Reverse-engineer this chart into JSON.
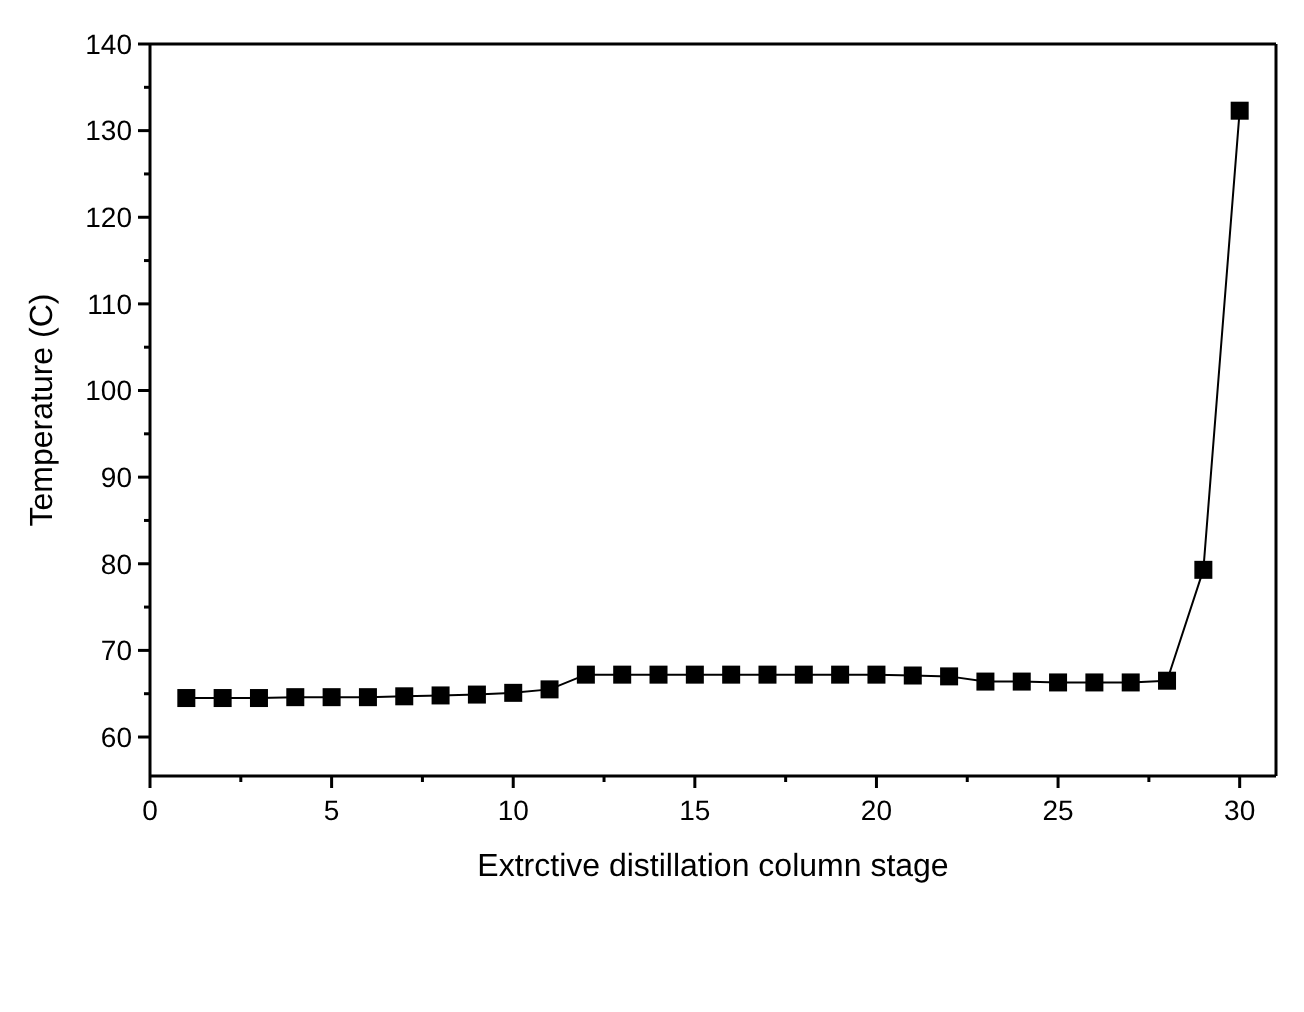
{
  "chart_data": {
    "type": "line",
    "xlabel": "Extrctive distillation column stage",
    "ylabel": "Temperature (C)",
    "x": [
      1,
      2,
      3,
      4,
      5,
      6,
      7,
      8,
      9,
      10,
      11,
      12,
      13,
      14,
      15,
      16,
      17,
      18,
      19,
      20,
      21,
      22,
      23,
      24,
      25,
      26,
      27,
      28,
      29,
      30
    ],
    "series": [
      {
        "color": "#000000",
        "values": [
          64.5,
          64.5,
          64.5,
          64.6,
          64.6,
          64.6,
          64.7,
          64.8,
          64.9,
          65.1,
          65.5,
          67.2,
          67.2,
          67.2,
          67.2,
          67.2,
          67.2,
          67.2,
          67.2,
          67.2,
          67.1,
          67.0,
          66.4,
          66.4,
          66.3,
          66.3,
          66.3,
          66.5,
          79.3,
          132.3
        ]
      }
    ],
    "xlim": [
      0,
      31
    ],
    "ylim": [
      55.5,
      140
    ],
    "xticks": [
      0,
      5,
      10,
      15,
      20,
      25,
      30
    ],
    "yticks": [
      60,
      70,
      80,
      90,
      100,
      110,
      120,
      130,
      140
    ],
    "marker": "square",
    "line_style": "solid",
    "grid": false
  }
}
